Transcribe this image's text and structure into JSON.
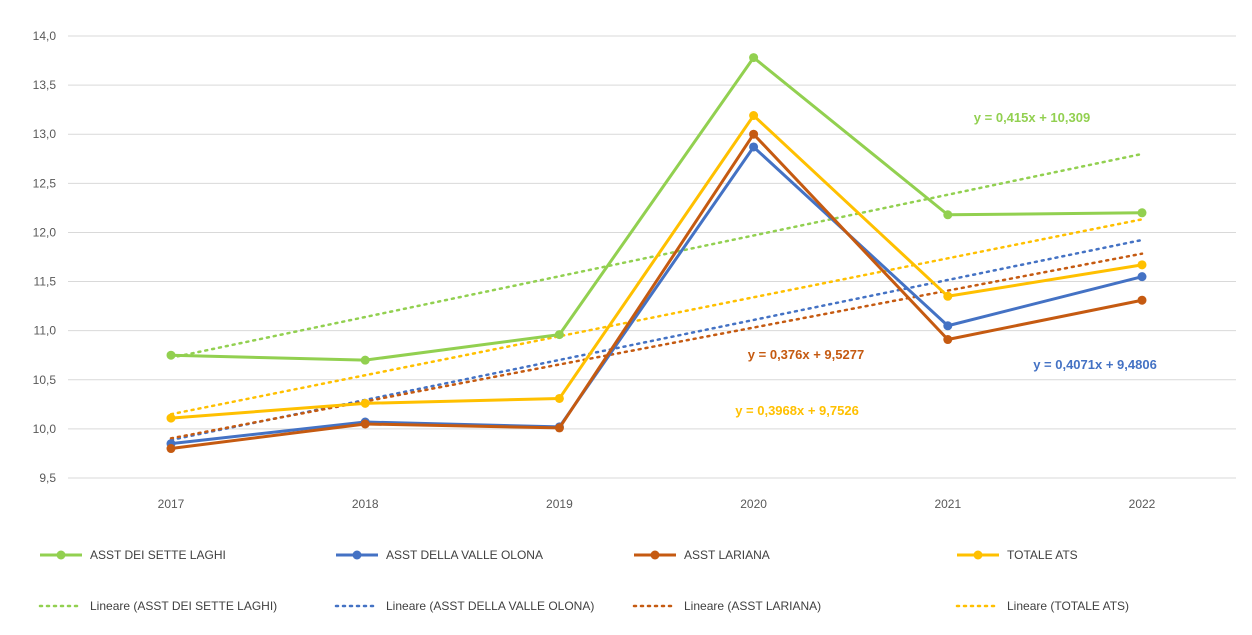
{
  "chart_data": {
    "type": "line",
    "title": "",
    "xlabel": "",
    "ylabel": "",
    "categories": [
      "2017",
      "2018",
      "2019",
      "2020",
      "2021",
      "2022"
    ],
    "ylim": [
      9.5,
      14.0
    ],
    "ytick_step": 0.5,
    "ytick_labels": [
      "9,5",
      "10,0",
      "10,5",
      "11,0",
      "11,5",
      "12,0",
      "12,5",
      "13,0",
      "13,5",
      "14,0"
    ],
    "grid": true,
    "legend_position": "bottom",
    "series": [
      {
        "name": "ASST DEI SETTE LAGHI",
        "color": "#92d050",
        "values": [
          10.75,
          10.7,
          10.96,
          13.78,
          12.18,
          12.2
        ]
      },
      {
        "name": "ASST DELLA VALLE OLONA",
        "color": "#4472c4",
        "values": [
          9.85,
          10.07,
          10.02,
          12.87,
          11.05,
          11.55
        ]
      },
      {
        "name": "ASST LARIANA",
        "color": "#c55a11",
        "values": [
          9.8,
          10.05,
          10.01,
          13.0,
          10.91,
          11.31
        ]
      },
      {
        "name": "TOTALE ATS",
        "color": "#ffc000",
        "values": [
          10.11,
          10.26,
          10.31,
          13.19,
          11.35,
          11.67
        ]
      }
    ],
    "trendlines": [
      {
        "name": "Lineare (ASST DEI SETTE LAGHI)",
        "color": "#92d050",
        "slope": 0.415,
        "intercept": 10.309,
        "equation": "y = 0,415x + 10,309"
      },
      {
        "name": "Lineare (ASST DELLA VALLE OLONA)",
        "color": "#4472c4",
        "slope": 0.4071,
        "intercept": 9.4806,
        "equation": "y = 0,4071x + 9,4806"
      },
      {
        "name": "Lineare (ASST LARIANA)",
        "color": "#c55a11",
        "slope": 0.376,
        "intercept": 9.5277,
        "equation": "y = 0,376x + 9,5277"
      },
      {
        "name": "Lineare (TOTALE ATS)",
        "color": "#ffc000",
        "slope": 0.3968,
        "intercept": 9.7526,
        "equation": "y = 0,3968x + 9,7526"
      }
    ]
  }
}
